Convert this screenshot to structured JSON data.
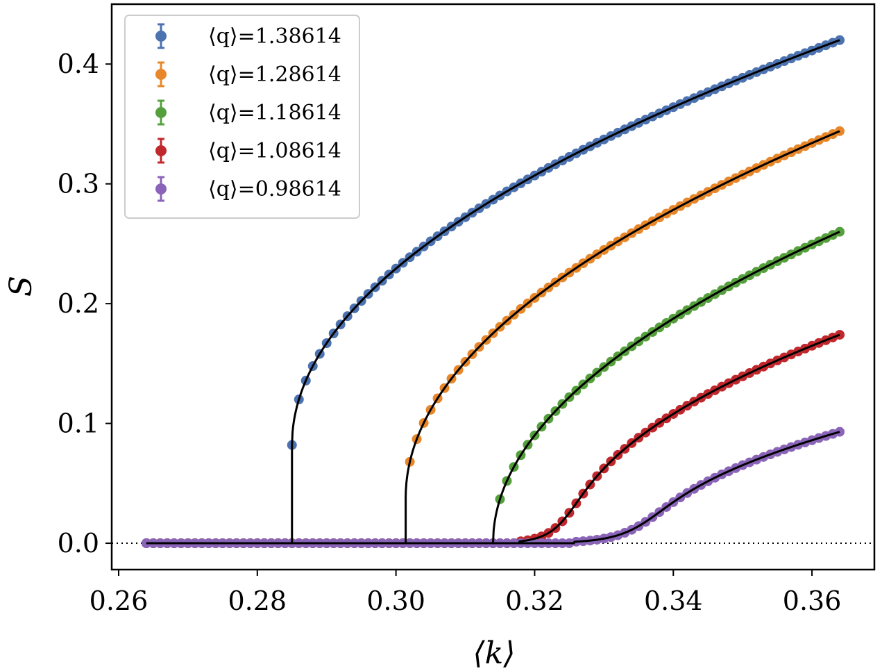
{
  "chart_data": {
    "type": "scatter",
    "xlabel": "⟨k⟩",
    "ylabel": "S",
    "xlim": [
      0.259,
      0.369
    ],
    "ylim": [
      -0.022,
      0.45
    ],
    "xticks": [
      0.26,
      0.28,
      0.3,
      0.32,
      0.34,
      0.36
    ],
    "xtick_labels": [
      "0.26",
      "0.28",
      "0.30",
      "0.32",
      "0.34",
      "0.36"
    ],
    "yticks": [
      0.0,
      0.1,
      0.2,
      0.3,
      0.4
    ],
    "ytick_labels": [
      "0.0",
      "0.1",
      "0.2",
      "0.3",
      "0.4"
    ],
    "grid": false,
    "legend_position": "top-left",
    "zero_line": {
      "y": 0,
      "style": "dotted",
      "color": "#000000"
    },
    "fit_line_color": "#000000",
    "x_start": 0.264,
    "x_end": 0.364,
    "x_step": 0.001,
    "series": [
      {
        "name": "⟨q⟩=1.38614",
        "color": "#4c72b0",
        "kc": 0.285,
        "S_end": 0.42,
        "jump": 0.082,
        "smooth": 0
      },
      {
        "name": "⟨q⟩=1.28614",
        "color": "#e8872a",
        "kc": 0.3014,
        "S_end": 0.344,
        "jump": 0.038,
        "smooth": 0
      },
      {
        "name": "⟨q⟩=1.18614",
        "color": "#55a03c",
        "kc": 0.314,
        "S_end": 0.26,
        "jump": 0.0,
        "smooth": 0
      },
      {
        "name": "⟨q⟩=1.08614",
        "color": "#c0282d",
        "kc": 0.325,
        "S_end": 0.174,
        "jump": 0.0,
        "smooth": 0.0012
      },
      {
        "name": "⟨q⟩=0.98614",
        "color": "#8a64b8",
        "kc": 0.3365,
        "S_end": 0.093,
        "jump": 0.0,
        "smooth": 0.0018
      }
    ]
  }
}
